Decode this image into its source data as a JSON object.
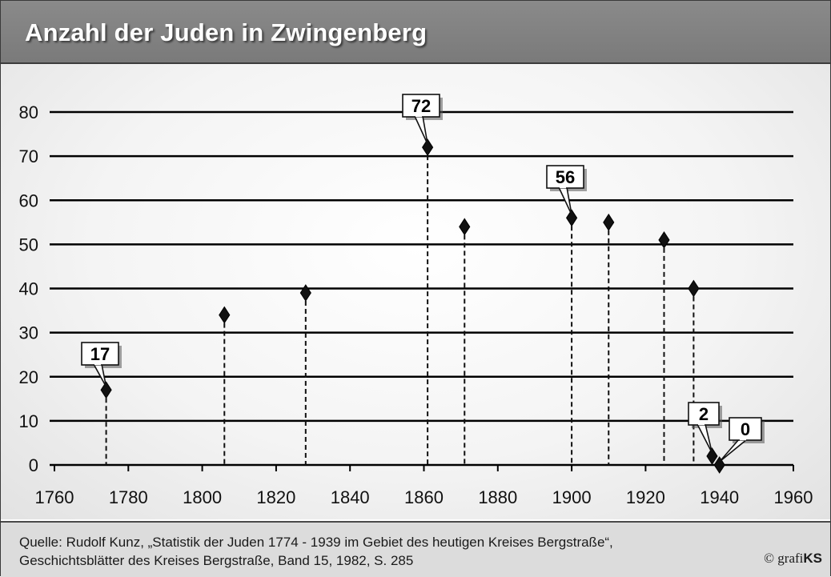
{
  "title": "Anzahl der Juden in Zwingenberg",
  "footer": {
    "source_line1": "Quelle: Rudolf Kunz, „Statistik der Juden 1774 - 1939 im Gebiet des heutigen Kreises Bergstraße“,",
    "source_line2": "Geschichtsblätter des Kreises Bergstraße, Band 15, 1982, S. 285",
    "copyright_symbol": "©",
    "copyright_brand_a": "grafi",
    "copyright_brand_b": "KS"
  },
  "chart_data": {
    "type": "scatter",
    "style": "dropline",
    "title": "Anzahl der Juden in Zwingenberg",
    "xlabel": "",
    "ylabel": "",
    "xlim": [
      1760,
      1960
    ],
    "ylim": [
      0,
      80
    ],
    "xticks": [
      1760,
      1780,
      1800,
      1820,
      1840,
      1860,
      1880,
      1900,
      1920,
      1940,
      1960
    ],
    "yticks": [
      0,
      10,
      20,
      30,
      40,
      50,
      60,
      70,
      80
    ],
    "grid": "horizontal",
    "marker": "diamond",
    "colors": {
      "marker": "#111111",
      "grid": "#000000",
      "background": "#ffffff",
      "header": "#808080",
      "footer": "#dcdcdc"
    },
    "points": [
      {
        "x": 1774,
        "y": 17,
        "label": "17"
      },
      {
        "x": 1806,
        "y": 34
      },
      {
        "x": 1828,
        "y": 39
      },
      {
        "x": 1861,
        "y": 72,
        "label": "72"
      },
      {
        "x": 1871,
        "y": 54
      },
      {
        "x": 1900,
        "y": 56,
        "label": "56"
      },
      {
        "x": 1910,
        "y": 55
      },
      {
        "x": 1925,
        "y": 51
      },
      {
        "x": 1933,
        "y": 40
      },
      {
        "x": 1938,
        "y": 2,
        "label": "2"
      },
      {
        "x": 1940,
        "y": 0,
        "label": "0"
      }
    ]
  }
}
